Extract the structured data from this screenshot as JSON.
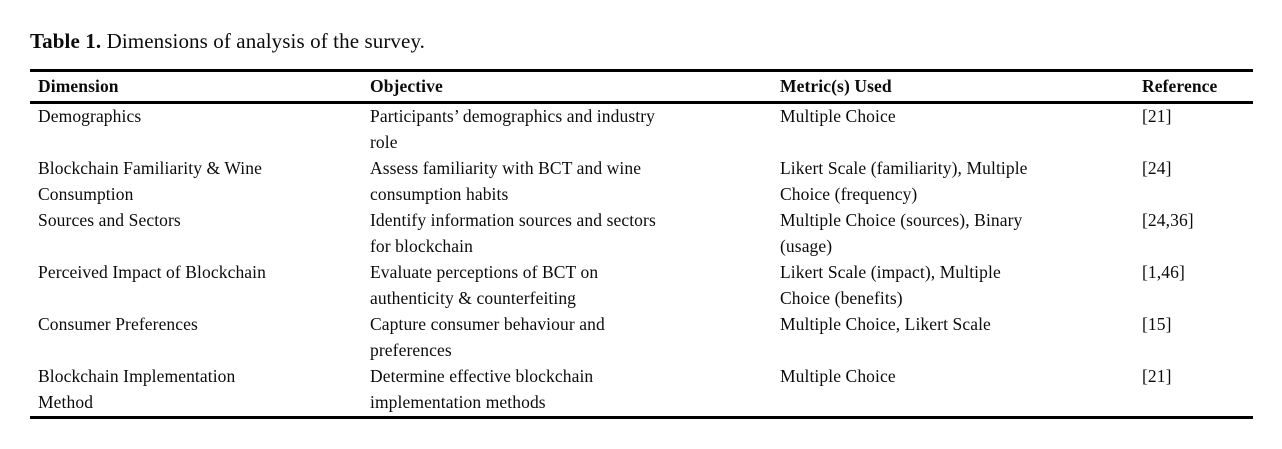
{
  "page": {
    "caption_label": "Table 1.",
    "caption_text": "Dimensions of analysis of the survey."
  },
  "colors": {
    "text": "#0b0b0b",
    "rule": "#000000",
    "background": "#ffffff"
  },
  "table": {
    "columns": [
      "Dimension",
      "Objective",
      "Metric(s) Used",
      "Reference"
    ],
    "rows": [
      {
        "dimension": "Demographics",
        "objective": "Participants’ demographics and industry\nrole",
        "metrics": "Multiple Choice",
        "reference": "[21]"
      },
      {
        "dimension": "Blockchain Familiarity & Wine\nConsumption",
        "objective": "Assess familiarity with BCT and wine\nconsumption habits",
        "metrics": "Likert Scale (familiarity), Multiple\nChoice (frequency)",
        "reference": "[24]"
      },
      {
        "dimension": "Sources and Sectors",
        "objective": "Identify information sources and sectors\nfor blockchain",
        "metrics": "Multiple Choice (sources), Binary\n(usage)",
        "reference": "[24,36]"
      },
      {
        "dimension": "Perceived Impact of Blockchain",
        "objective": "Evaluate perceptions of BCT on\nauthenticity & counterfeiting",
        "metrics": "Likert Scale (impact), Multiple\nChoice (benefits)",
        "reference": "[1,46]"
      },
      {
        "dimension": "Consumer Preferences",
        "objective": "Capture consumer behaviour and\npreferences",
        "metrics": "Multiple Choice, Likert Scale",
        "reference": "[15]"
      },
      {
        "dimension": "Blockchain Implementation\nMethod",
        "objective": "Determine effective blockchain\nimplementation methods",
        "metrics": "Multiple Choice",
        "reference": "[21]"
      }
    ]
  }
}
